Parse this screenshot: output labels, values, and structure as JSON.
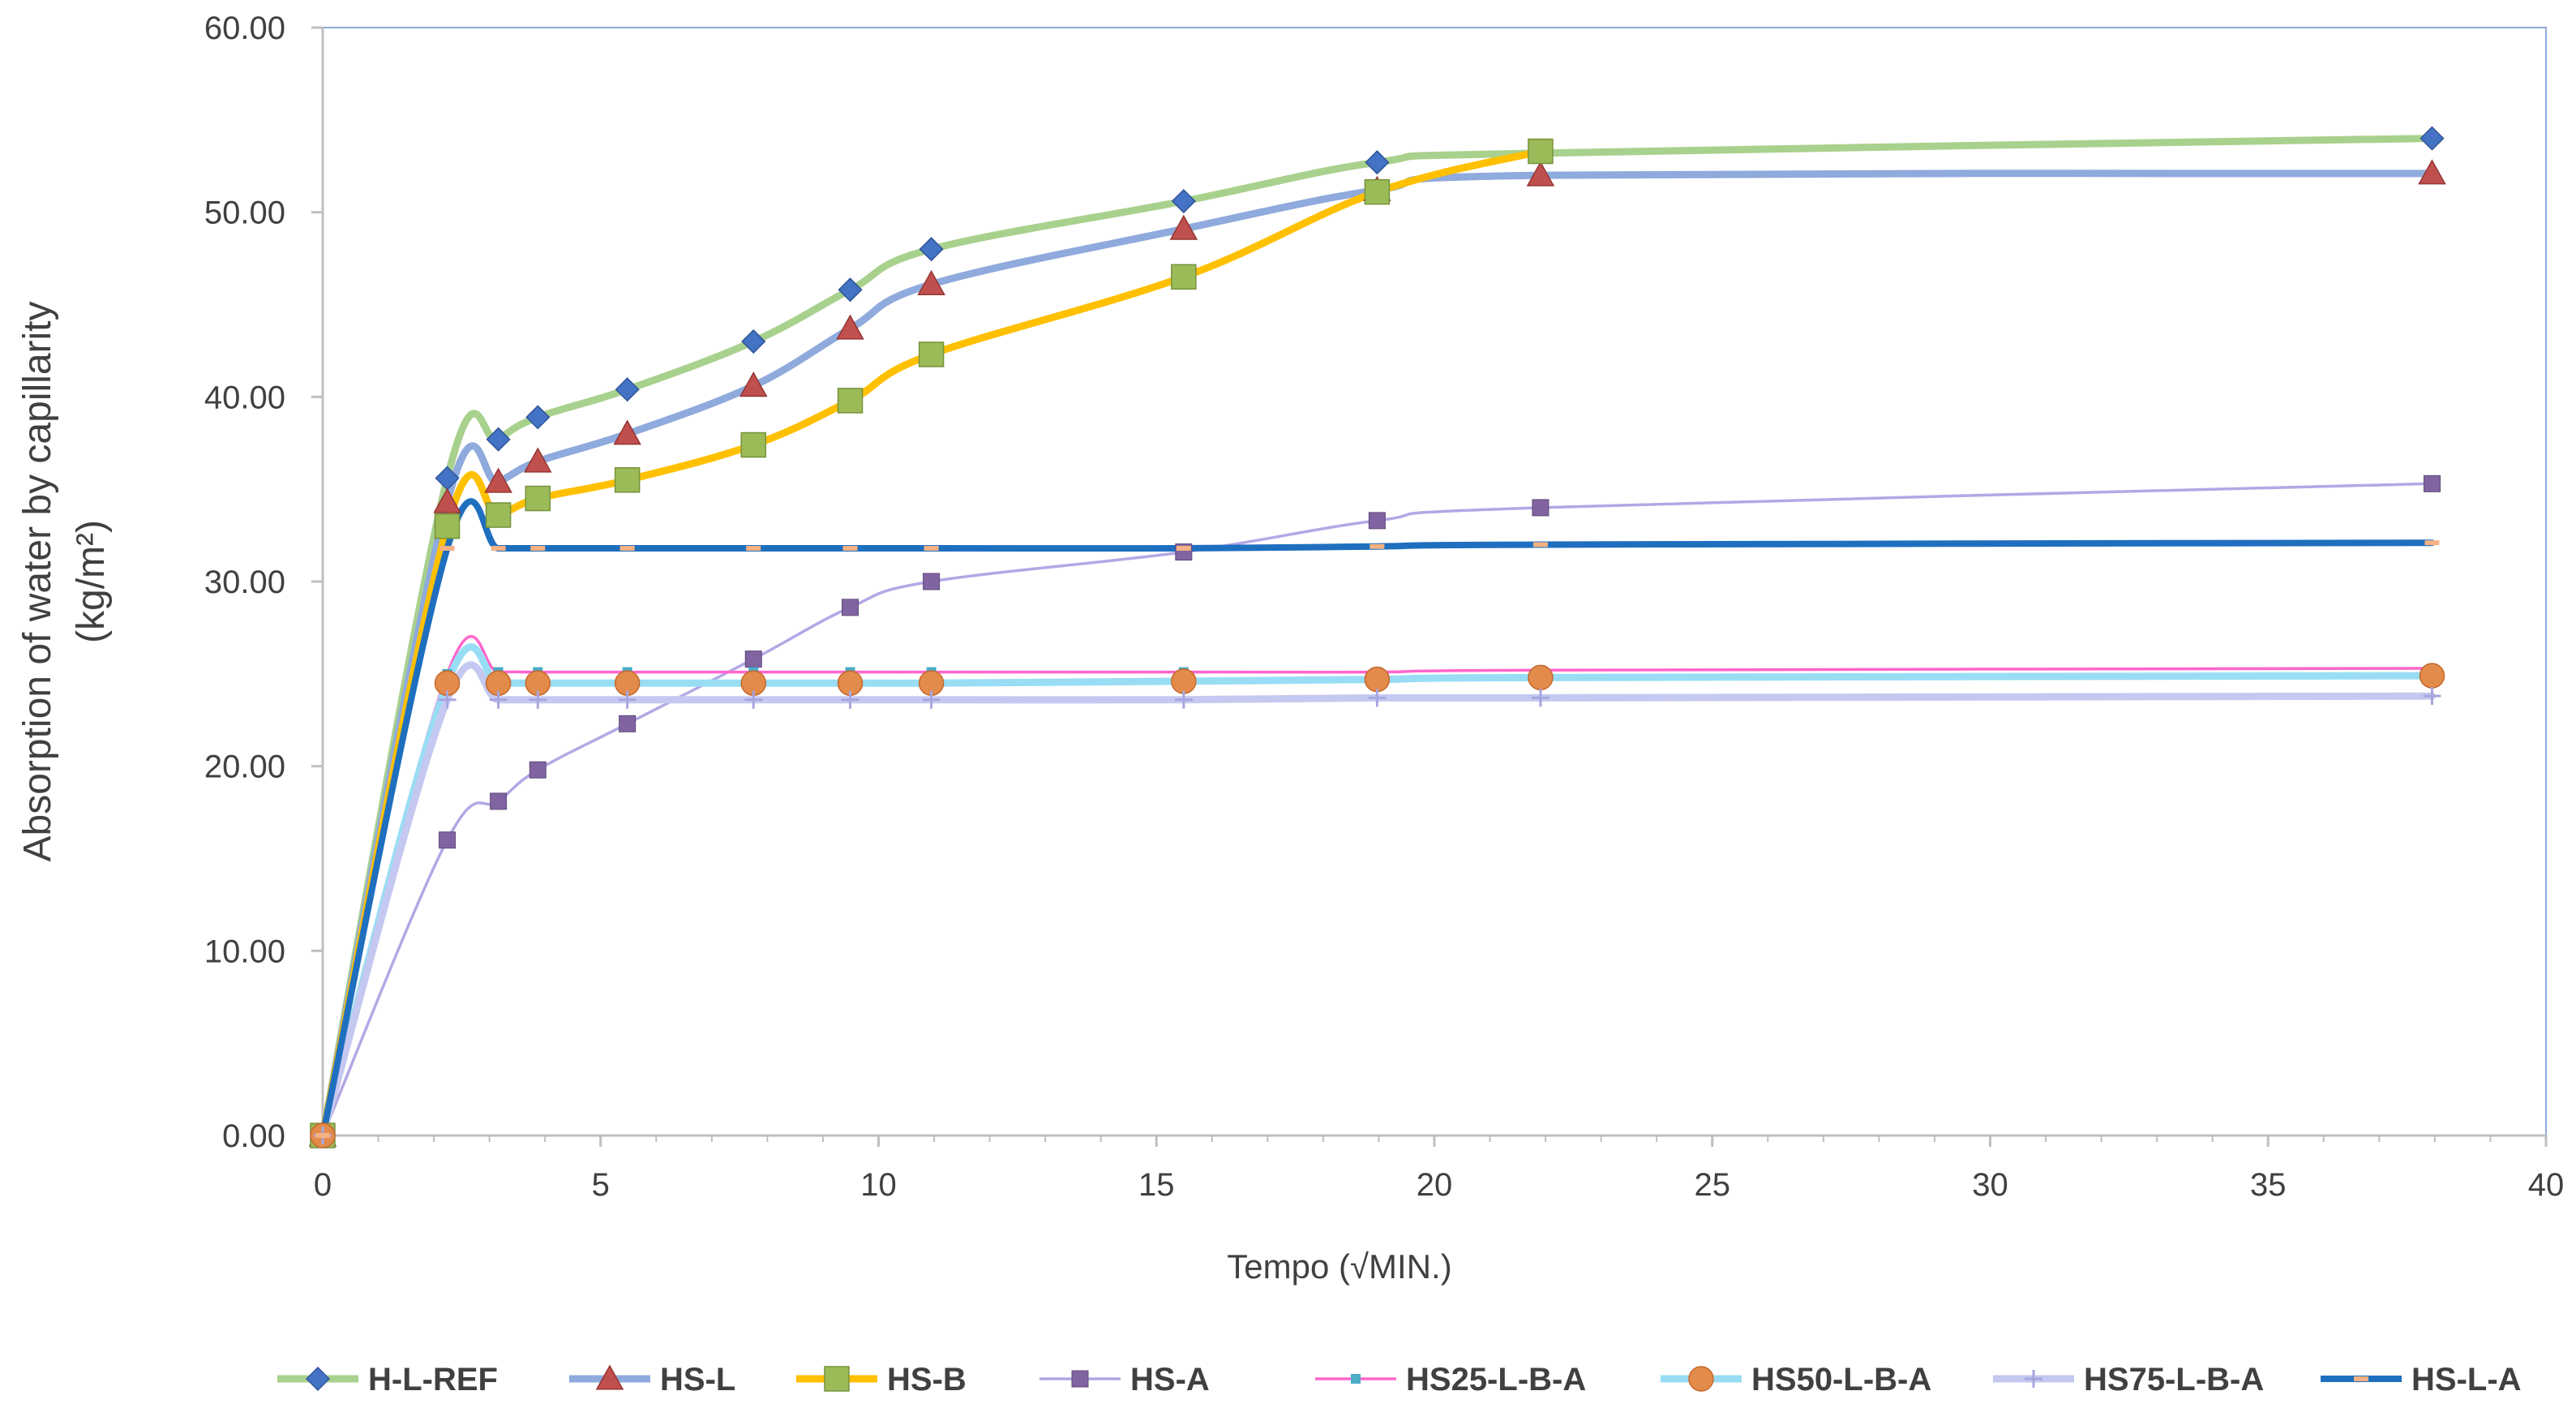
{
  "chart_data": {
    "type": "line",
    "title": "",
    "xlabel": "Tempo (√MIN.)",
    "ylabel_line1": "Absorption of water by capillarity",
    "ylabel_line2": "(kg/m²)",
    "xlim": [
      0,
      40
    ],
    "ylim": [
      0,
      60
    ],
    "x_ticks": [
      "0",
      "5",
      "10",
      "15",
      "20",
      "25",
      "30",
      "35",
      "40"
    ],
    "y_ticks": [
      "0.00",
      "10.00",
      "20.00",
      "30.00",
      "40.00",
      "50.00",
      "60.00"
    ],
    "grid": false,
    "legend_position": "bottom",
    "series": [
      {
        "name": "H-L-REF",
        "line_color": "#A9D18E",
        "marker": "diamond",
        "marker_color": "#4472C4",
        "x": [
          0,
          2.24,
          3.16,
          3.87,
          5.48,
          7.75,
          9.49,
          10.95,
          15.49,
          18.97,
          21.91,
          37.95
        ],
        "values": [
          0,
          35.6,
          37.7,
          38.9,
          40.4,
          43.0,
          45.8,
          48.0,
          50.6,
          52.7,
          53.2,
          54.0
        ]
      },
      {
        "name": "HS-L",
        "line_color": "#8FAADC",
        "marker": "triangle",
        "marker_color": "#C0504D",
        "x": [
          0,
          2.24,
          3.16,
          3.87,
          5.48,
          7.75,
          9.49,
          10.95,
          15.49,
          18.97,
          21.91,
          37.95
        ],
        "values": [
          0,
          34.3,
          35.4,
          36.5,
          38.0,
          40.6,
          43.7,
          46.1,
          49.1,
          51.2,
          52.0,
          52.1
        ]
      },
      {
        "name": "HS-B",
        "line_color": "#FFC000",
        "marker": "square",
        "marker_color": "#9BBB59",
        "x": [
          0,
          2.24,
          3.16,
          3.87,
          5.48,
          7.75,
          9.49,
          10.95,
          15.49,
          18.97,
          21.91
        ],
        "values": [
          0,
          33.0,
          33.6,
          34.5,
          35.5,
          37.4,
          39.8,
          42.3,
          46.5,
          51.1,
          53.3
        ]
      },
      {
        "name": "HS-A",
        "line_color": "#B4A7E5",
        "marker": "square-small",
        "marker_color": "#8064A2",
        "x": [
          0,
          2.24,
          3.16,
          3.87,
          5.48,
          7.75,
          9.49,
          10.95,
          15.49,
          18.97,
          21.91,
          37.95
        ],
        "values": [
          0,
          16.0,
          18.1,
          19.8,
          22.3,
          25.8,
          28.6,
          30.0,
          31.6,
          33.3,
          34.0,
          35.3
        ]
      },
      {
        "name": "HS25-L-B-A",
        "line_color": "#FF66CC",
        "marker": "square-tiny",
        "marker_color": "#4BACC6",
        "x": [
          0,
          2.24,
          3.16,
          3.87,
          5.48,
          7.75,
          9.49,
          10.95,
          15.49,
          18.97,
          21.91,
          37.95
        ],
        "values": [
          0,
          25.0,
          25.1,
          25.1,
          25.1,
          25.1,
          25.1,
          25.1,
          25.1,
          25.1,
          25.2,
          25.3
        ]
      },
      {
        "name": "HS50-L-B-A",
        "line_color": "#99DDF5",
        "marker": "circle",
        "marker_color": "#E38B4A",
        "x": [
          0,
          2.24,
          3.16,
          3.87,
          5.48,
          7.75,
          9.49,
          10.95,
          15.49,
          18.97,
          21.91,
          37.95
        ],
        "values": [
          0,
          24.5,
          24.5,
          24.5,
          24.5,
          24.5,
          24.5,
          24.5,
          24.6,
          24.7,
          24.8,
          24.9
        ]
      },
      {
        "name": "HS75-L-B-A",
        "line_color": "#C5C8F0",
        "marker": "plus",
        "marker_color": "#A6A6E0",
        "x": [
          0,
          2.24,
          3.16,
          3.87,
          5.48,
          7.75,
          9.49,
          10.95,
          15.49,
          18.97,
          21.91,
          37.95
        ],
        "values": [
          0,
          23.6,
          23.6,
          23.6,
          23.6,
          23.6,
          23.6,
          23.6,
          23.6,
          23.7,
          23.7,
          23.8
        ]
      },
      {
        "name": "HS-L-A",
        "line_color": "#1F6FBF",
        "marker": "dash",
        "marker_color": "#F4B183",
        "x": [
          0,
          2.24,
          3.16,
          3.87,
          5.48,
          7.75,
          9.49,
          10.95,
          15.49,
          18.97,
          21.91,
          37.95
        ],
        "values": [
          0,
          31.8,
          31.8,
          31.8,
          31.8,
          31.8,
          31.8,
          31.8,
          31.8,
          31.9,
          32.0,
          32.1
        ]
      }
    ]
  },
  "colors": {
    "axis": "#BFBFBF",
    "frame": "#8FAADC",
    "text": "#404040"
  }
}
